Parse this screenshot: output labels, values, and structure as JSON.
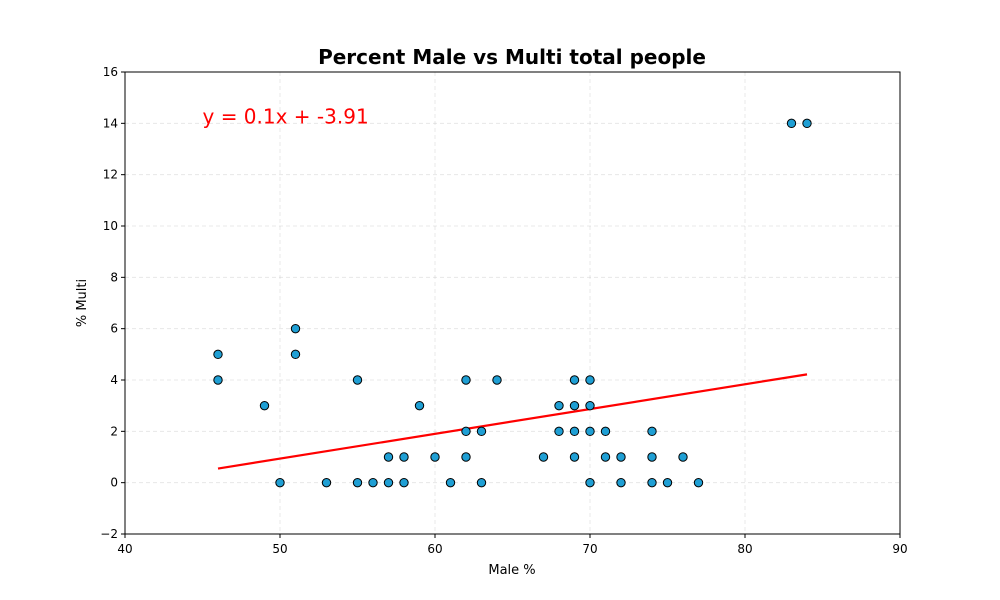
{
  "chart_data": {
    "type": "scatter",
    "title": "Percent Male vs Multi total people",
    "xlabel": "Male %",
    "ylabel": "% Multi",
    "xlim": [
      40,
      90
    ],
    "ylim": [
      -2,
      16
    ],
    "xticks": [
      40,
      50,
      60,
      70,
      80,
      90
    ],
    "yticks": [
      -2,
      0,
      2,
      4,
      6,
      8,
      10,
      12,
      14,
      16
    ],
    "ytick_labels": [
      "−2",
      "0",
      "2",
      "4",
      "6",
      "8",
      "10",
      "12",
      "14",
      "16"
    ],
    "grid": true,
    "series": [
      {
        "points": [
          [
            46,
            5
          ],
          [
            46,
            4
          ],
          [
            49,
            3
          ],
          [
            50,
            0
          ],
          [
            51,
            6
          ],
          [
            51,
            5
          ],
          [
            53,
            0
          ],
          [
            55,
            4
          ],
          [
            55,
            0
          ],
          [
            56,
            0
          ],
          [
            57,
            1
          ],
          [
            57,
            0
          ],
          [
            58,
            1
          ],
          [
            58,
            0
          ],
          [
            59,
            3
          ],
          [
            60,
            1
          ],
          [
            61,
            0
          ],
          [
            62,
            4
          ],
          [
            62,
            2
          ],
          [
            62,
            1
          ],
          [
            63,
            2
          ],
          [
            63,
            0
          ],
          [
            64,
            4
          ],
          [
            67,
            1
          ],
          [
            68,
            3
          ],
          [
            68,
            2
          ],
          [
            69,
            4
          ],
          [
            69,
            3
          ],
          [
            69,
            2
          ],
          [
            69,
            1
          ],
          [
            70,
            4
          ],
          [
            70,
            3
          ],
          [
            70,
            2
          ],
          [
            70,
            0
          ],
          [
            71,
            2
          ],
          [
            71,
            1
          ],
          [
            72,
            1
          ],
          [
            72,
            0
          ],
          [
            74,
            2
          ],
          [
            74,
            1
          ],
          [
            74,
            0
          ],
          [
            75,
            0
          ],
          [
            76,
            1
          ],
          [
            77,
            0
          ],
          [
            83,
            14
          ],
          [
            84,
            14
          ]
        ],
        "marker_color": "#1f9fd4",
        "edge_color": "#000000"
      }
    ],
    "regression": {
      "slope": 0.1,
      "intercept": -3.91,
      "x_range": [
        46,
        84
      ],
      "y_range": [
        0.55,
        4.22
      ],
      "color": "#ff0000",
      "equation_label": "y = 0.1x + -3.91",
      "label_at": [
        45,
        14
      ]
    }
  }
}
